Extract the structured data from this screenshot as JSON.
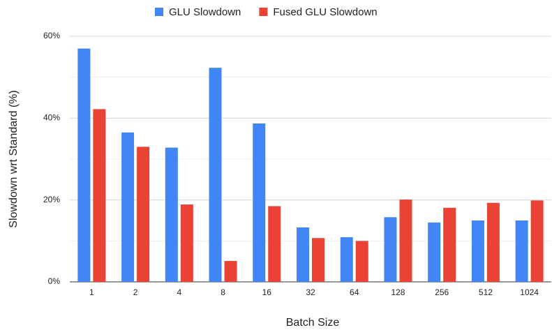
{
  "chart_data": {
    "type": "bar",
    "x_label": "Batch Size",
    "y_label": "Slowdown wrt Standard (%)",
    "categories": [
      "1",
      "2",
      "4",
      "8",
      "16",
      "32",
      "64",
      "128",
      "256",
      "512",
      "1024"
    ],
    "series": [
      {
        "name": "GLU Slowdown",
        "color": "#4285f4",
        "values": [
          57,
          36.5,
          32.8,
          52.3,
          38.7,
          13.3,
          10.9,
          15.8,
          14.5,
          15,
          15
        ]
      },
      {
        "name": "Fused GLU Slowdown",
        "color": "#ea4335",
        "values": [
          42.2,
          33,
          18.9,
          5.1,
          18.5,
          10.7,
          10,
          20.1,
          18.1,
          19.3,
          19.9
        ]
      }
    ],
    "ylim": [
      0,
      60
    ],
    "yticks": [
      {
        "value": 0,
        "label": "0%"
      },
      {
        "value": 20,
        "label": "20%"
      },
      {
        "value": 40,
        "label": "40%"
      },
      {
        "value": 60,
        "label": "60%"
      }
    ],
    "minor_yticks": [
      10,
      30,
      50
    ],
    "grid": true,
    "legend": "top"
  }
}
